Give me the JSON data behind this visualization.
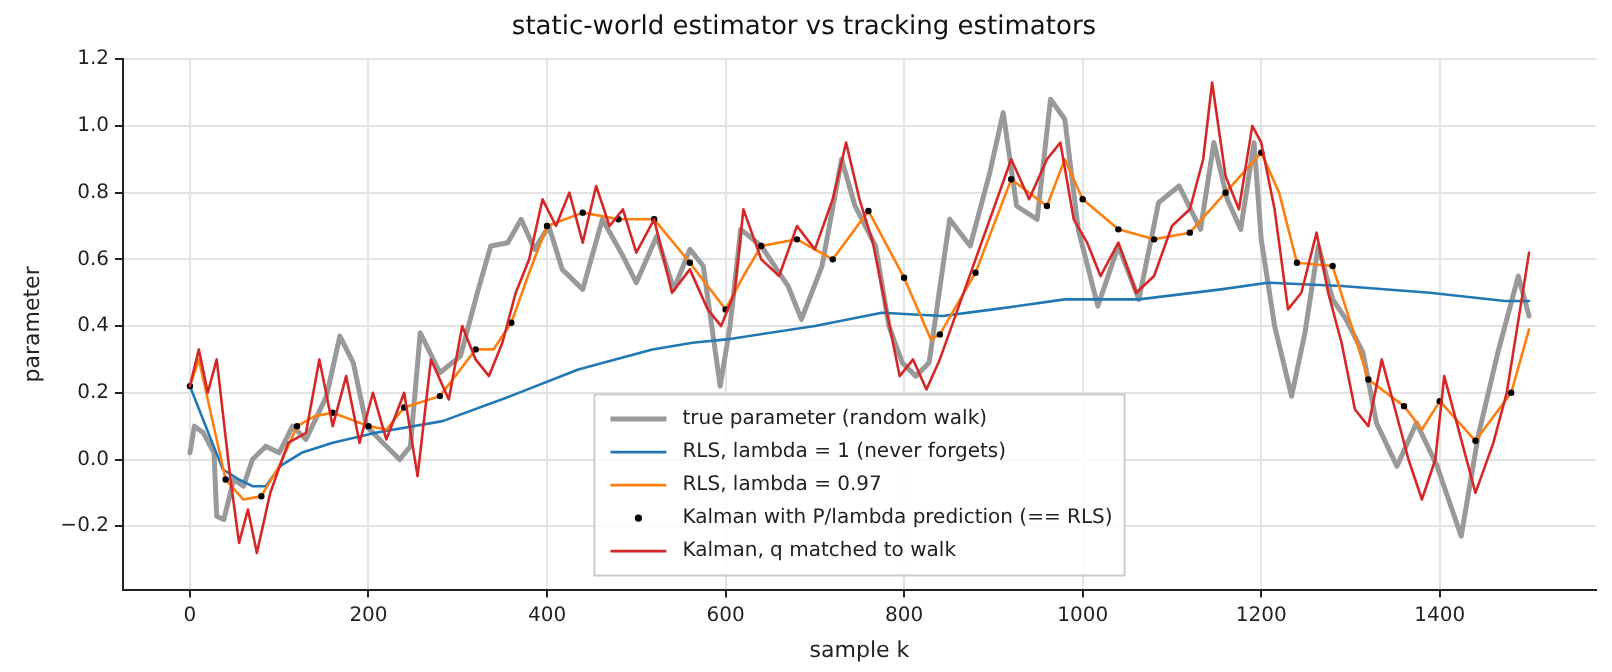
{
  "chart_data": {
    "type": "line",
    "title": "static-world estimator vs tracking estimators",
    "xlabel": "sample k",
    "ylabel": "parameter",
    "xlim": [
      -75,
      1575
    ],
    "xticks": [
      0,
      200,
      400,
      600,
      800,
      1000,
      1200,
      1400
    ],
    "ylim": [
      -0.39,
      1.2
    ],
    "yticks": [
      {
        "value": -0.2,
        "label": "−0.2"
      },
      {
        "value": 0,
        "label": "0.0"
      },
      {
        "value": 0.2,
        "label": "0.2"
      },
      {
        "value": 0.4,
        "label": "0.4"
      },
      {
        "value": 0.6,
        "label": "0.6"
      },
      {
        "value": 0.8,
        "label": "0.8"
      },
      {
        "value": 1.0,
        "label": "1.0"
      },
      {
        "value": 1.2,
        "label": "1.2"
      }
    ],
    "grid": true,
    "legend": "bottom",
    "marker": "none",
    "line_style": "solid",
    "series": [
      {
        "name": "true parameter (random walk)",
        "color": "#999999",
        "x": [
          0,
          5,
          15,
          27,
          30,
          38,
          49,
          60,
          70,
          85,
          100,
          115,
          130,
          153,
          168,
          183,
          198,
          220,
          235,
          247,
          258,
          280,
          303,
          322,
          337,
          356,
          371,
          386,
          402,
          417,
          440,
          462,
          485,
          500,
          523,
          542,
          560,
          575,
          594,
          605,
          617,
          640,
          670,
          685,
          708,
          730,
          745,
          768,
          783,
          798,
          813,
          828,
          851,
          874,
          896,
          911,
          926,
          949,
          964,
          980,
          995,
          1017,
          1040,
          1063,
          1085,
          1108,
          1132,
          1147,
          1162,
          1177,
          1192,
          1200,
          1215,
          1234,
          1249,
          1264,
          1280,
          1295,
          1314,
          1329,
          1352,
          1374,
          1397,
          1424,
          1443,
          1465,
          1488,
          1500
        ],
        "values": [
          0.02,
          0.1,
          0.08,
          0.02,
          -0.17,
          -0.18,
          -0.06,
          -0.08,
          0.0,
          0.04,
          0.02,
          0.1,
          0.06,
          0.19,
          0.37,
          0.29,
          0.1,
          0.04,
          0.0,
          0.04,
          0.38,
          0.26,
          0.31,
          0.5,
          0.64,
          0.65,
          0.72,
          0.63,
          0.7,
          0.57,
          0.51,
          0.72,
          0.61,
          0.53,
          0.67,
          0.51,
          0.63,
          0.58,
          0.22,
          0.4,
          0.69,
          0.64,
          0.52,
          0.42,
          0.58,
          0.9,
          0.76,
          0.64,
          0.4,
          0.29,
          0.25,
          0.29,
          0.72,
          0.64,
          0.86,
          1.04,
          0.76,
          0.72,
          1.08,
          1.02,
          0.69,
          0.46,
          0.64,
          0.48,
          0.77,
          0.82,
          0.69,
          0.95,
          0.78,
          0.69,
          0.95,
          0.66,
          0.4,
          0.19,
          0.38,
          0.64,
          0.48,
          0.42,
          0.32,
          0.11,
          -0.02,
          0.11,
          -0.02,
          -0.23,
          0.07,
          0.32,
          0.55,
          0.43
        ]
      },
      {
        "name": "RLS, lambda = 1 (never forgets)",
        "color": "#1f77b4",
        "x": [
          0,
          25,
          37,
          55,
          70,
          85,
          101,
          125,
          160,
          208,
          283,
          359,
          435,
          518,
          563,
          601,
          700,
          775,
          843,
          900,
          980,
          1063,
          1155,
          1207,
          1290,
          1389,
          1473,
          1500
        ],
        "values": [
          0.22,
          0.05,
          -0.03,
          -0.06,
          -0.08,
          -0.08,
          -0.02,
          0.02,
          0.05,
          0.08,
          0.115,
          0.19,
          0.27,
          0.33,
          0.35,
          0.36,
          0.4,
          0.44,
          0.43,
          0.45,
          0.48,
          0.48,
          0.51,
          0.53,
          0.52,
          0.5,
          0.475,
          0.475
        ]
      },
      {
        "name": "RLS, lambda = 0.97",
        "color": "#ff7f0e",
        "x": [
          0,
          10,
          40,
          60,
          80,
          100,
          120,
          140,
          160,
          200,
          220,
          240,
          280,
          320,
          340,
          360,
          380,
          400,
          440,
          480,
          520,
          560,
          600,
          620,
          640,
          680,
          720,
          760,
          800,
          830,
          840,
          880,
          920,
          960,
          980,
          1000,
          1040,
          1080,
          1120,
          1160,
          1200,
          1220,
          1240,
          1280,
          1320,
          1360,
          1380,
          1400,
          1440,
          1480,
          1500
        ],
        "values": [
          0.22,
          0.3,
          -0.06,
          -0.12,
          -0.11,
          -0.02,
          0.1,
          0.13,
          0.14,
          0.1,
          0.09,
          0.156,
          0.19,
          0.33,
          0.33,
          0.41,
          0.56,
          0.7,
          0.74,
          0.72,
          0.72,
          0.59,
          0.45,
          0.55,
          0.64,
          0.66,
          0.6,
          0.745,
          0.545,
          0.36,
          0.375,
          0.56,
          0.84,
          0.76,
          0.9,
          0.78,
          0.69,
          0.66,
          0.68,
          0.8,
          0.92,
          0.8,
          0.59,
          0.58,
          0.24,
          0.16,
          0.09,
          0.175,
          0.056,
          0.2,
          0.39
        ]
      },
      {
        "name": "Kalman with P/lambda prediction (== RLS)",
        "type": "scatter",
        "marker": "circle",
        "color": "#000000",
        "x": [
          0,
          40,
          80,
          120,
          160,
          200,
          240,
          280,
          320,
          360,
          400,
          440,
          480,
          520,
          560,
          600,
          640,
          680,
          720,
          760,
          800,
          840,
          880,
          920,
          960,
          1000,
          1040,
          1080,
          1120,
          1160,
          1200,
          1240,
          1280,
          1320,
          1360,
          1400,
          1440,
          1480
        ],
        "values": [
          0.22,
          -0.06,
          -0.11,
          0.1,
          0.14,
          0.1,
          0.156,
          0.19,
          0.33,
          0.41,
          0.7,
          0.74,
          0.72,
          0.72,
          0.59,
          0.45,
          0.64,
          0.66,
          0.6,
          0.745,
          0.545,
          0.375,
          0.56,
          0.84,
          0.76,
          0.78,
          0.69,
          0.66,
          0.68,
          0.8,
          0.92,
          0.59,
          0.58,
          0.24,
          0.16,
          0.175,
          0.056,
          0.2
        ]
      },
      {
        "name": "Kalman, q matched to walk",
        "color": "#d62728",
        "x": [
          0,
          10,
          20,
          30,
          45,
          55,
          65,
          75,
          90,
          110,
          130,
          145,
          160,
          175,
          190,
          205,
          220,
          240,
          255,
          270,
          290,
          305,
          320,
          335,
          350,
          365,
          380,
          395,
          410,
          425,
          440,
          455,
          470,
          485,
          500,
          520,
          540,
          560,
          580,
          595,
          610,
          620,
          640,
          660,
          680,
          700,
          720,
          735,
          750,
          765,
          780,
          795,
          810,
          825,
          840,
          860,
          880,
          900,
          920,
          940,
          960,
          975,
          990,
          1005,
          1020,
          1040,
          1060,
          1080,
          1100,
          1120,
          1135,
          1145,
          1160,
          1175,
          1190,
          1200,
          1215,
          1230,
          1245,
          1262,
          1275,
          1290,
          1305,
          1320,
          1335,
          1350,
          1365,
          1380,
          1395,
          1405,
          1420,
          1440,
          1460,
          1475,
          1490,
          1500
        ],
        "values": [
          0.22,
          0.33,
          0.2,
          0.3,
          -0.05,
          -0.25,
          -0.15,
          -0.28,
          -0.1,
          0.05,
          0.08,
          0.3,
          0.1,
          0.25,
          0.05,
          0.2,
          0.06,
          0.2,
          -0.05,
          0.3,
          0.18,
          0.4,
          0.3,
          0.25,
          0.35,
          0.5,
          0.6,
          0.78,
          0.7,
          0.8,
          0.65,
          0.82,
          0.7,
          0.75,
          0.62,
          0.72,
          0.5,
          0.57,
          0.45,
          0.4,
          0.5,
          0.75,
          0.6,
          0.55,
          0.7,
          0.63,
          0.78,
          0.95,
          0.78,
          0.65,
          0.45,
          0.25,
          0.3,
          0.21,
          0.3,
          0.45,
          0.6,
          0.75,
          0.9,
          0.78,
          0.9,
          0.95,
          0.72,
          0.65,
          0.55,
          0.65,
          0.5,
          0.55,
          0.7,
          0.75,
          0.9,
          1.13,
          0.85,
          0.75,
          1.0,
          0.95,
          0.75,
          0.45,
          0.5,
          0.68,
          0.5,
          0.35,
          0.15,
          0.1,
          0.3,
          0.15,
          0.0,
          -0.12,
          0.0,
          0.25,
          0.1,
          -0.1,
          0.05,
          0.2,
          0.45,
          0.62
        ]
      }
    ]
  }
}
